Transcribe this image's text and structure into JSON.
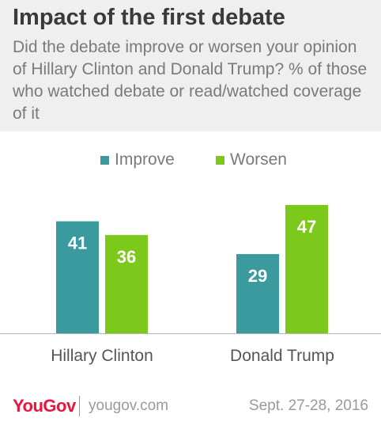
{
  "chart_data": {
    "type": "bar",
    "title": "Impact of the first debate",
    "subtitle": "Did the debate improve or worsen your opinion of Hillary Clinton and Donald Trump? % of those who watched debate or read/watched coverage of it",
    "categories": [
      "Hillary Clinton",
      "Donald Trump"
    ],
    "series": [
      {
        "name": "Improve",
        "values": [
          41,
          29
        ],
        "color": "#3a9a9d"
      },
      {
        "name": "Worsen",
        "values": [
          36,
          47
        ],
        "color": "#7dc91b"
      }
    ],
    "ylim": [
      0,
      50
    ],
    "grid": false,
    "legend": "top-center",
    "data_labels": true
  },
  "footer": {
    "logo": "YouGov",
    "url": "yougov.com",
    "date": "Sept. 27-28, 2016"
  },
  "colors": {
    "header_bg": "#efefef",
    "title": "#3a3a3a",
    "subtitle": "#7a7a7a",
    "axis": "#b5b5b5",
    "brand": "#e8163c"
  }
}
